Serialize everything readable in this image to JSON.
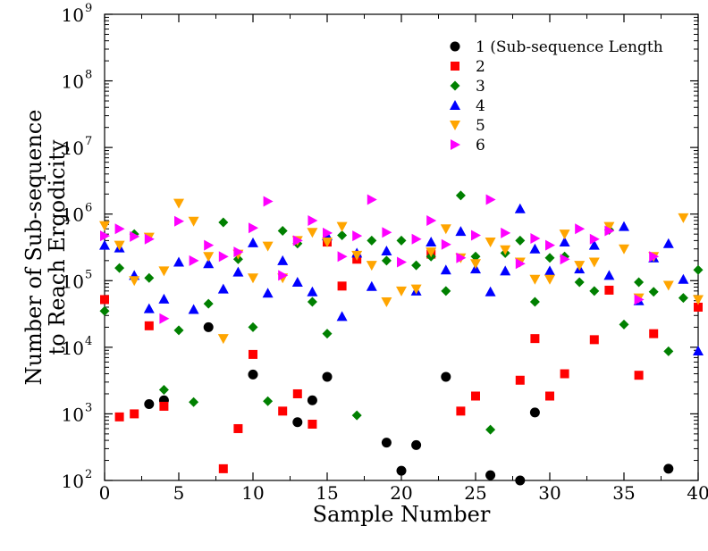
{
  "chart_data": {
    "type": "scatter",
    "xlabel": "Sample Number",
    "ylabel_lines": [
      "Number of Sub-sequence",
      "to Reach Ergodicity"
    ],
    "xlim": [
      0,
      40
    ],
    "ylim": [
      100,
      1000000000
    ],
    "yscale": "log",
    "grid": false,
    "legend_placement": "top-right",
    "x_ticks": [
      {
        "value": 0,
        "label": "0"
      },
      {
        "value": 5,
        "label": "5"
      },
      {
        "value": 10,
        "label": "10"
      },
      {
        "value": 15,
        "label": "15"
      },
      {
        "value": 20,
        "label": "20"
      },
      {
        "value": 25,
        "label": "25"
      },
      {
        "value": 30,
        "label": "30"
      },
      {
        "value": 35,
        "label": "35"
      },
      {
        "value": 40,
        "label": "40"
      }
    ],
    "y_ticks": [
      {
        "value": 100,
        "base": "10",
        "exp": "2"
      },
      {
        "value": 1000,
        "base": "10",
        "exp": "3"
      },
      {
        "value": 10000,
        "base": "10",
        "exp": "4"
      },
      {
        "value": 100000,
        "base": "10",
        "exp": "5"
      },
      {
        "value": 1000000,
        "base": "10",
        "exp": "6"
      },
      {
        "value": 10000000,
        "base": "10",
        "exp": "7"
      },
      {
        "value": 100000000,
        "base": "10",
        "exp": "8"
      },
      {
        "value": 1000000000,
        "base": "10",
        "exp": "9"
      }
    ],
    "series": [
      {
        "name": "1 (Sub-sequence Length",
        "marker": "circle",
        "color": "#000000",
        "points": [
          [
            3,
            1400
          ],
          [
            4,
            1600
          ],
          [
            7,
            20000
          ],
          [
            10,
            3900
          ],
          [
            13,
            750
          ],
          [
            14,
            1600
          ],
          [
            15,
            3600
          ],
          [
            19,
            370
          ],
          [
            20,
            140
          ],
          [
            21,
            340
          ],
          [
            23,
            3600
          ],
          [
            26,
            120
          ],
          [
            28,
            100
          ],
          [
            29,
            1050
          ],
          [
            38,
            150
          ]
        ]
      },
      {
        "name": "2",
        "marker": "square",
        "color": "#ff0000",
        "points": [
          [
            0,
            52000
          ],
          [
            1,
            900
          ],
          [
            2,
            1000
          ],
          [
            3,
            21000
          ],
          [
            4,
            1300
          ],
          [
            8,
            150
          ],
          [
            9,
            600
          ],
          [
            10,
            7800
          ],
          [
            12,
            1100
          ],
          [
            13,
            2000
          ],
          [
            14,
            700
          ],
          [
            15,
            380000
          ],
          [
            16,
            83000
          ],
          [
            17,
            210000
          ],
          [
            22,
            250000
          ],
          [
            24,
            1100
          ],
          [
            25,
            1850
          ],
          [
            28,
            3200
          ],
          [
            29,
            13500
          ],
          [
            30,
            1850
          ],
          [
            31,
            4000
          ],
          [
            33,
            13000
          ],
          [
            34,
            72000
          ],
          [
            36,
            3800
          ],
          [
            37,
            16000
          ],
          [
            40,
            40000
          ]
        ]
      },
      {
        "name": "3",
        "marker": "diamond",
        "color": "#008000",
        "points": [
          [
            0,
            35000
          ],
          [
            1,
            155000
          ],
          [
            2,
            500000
          ],
          [
            3,
            110000
          ],
          [
            4,
            2300
          ],
          [
            5,
            18000
          ],
          [
            6,
            1500
          ],
          [
            7,
            45000
          ],
          [
            8,
            750000
          ],
          [
            9,
            210000
          ],
          [
            10,
            20000
          ],
          [
            11,
            1550
          ],
          [
            12,
            560000
          ],
          [
            13,
            360000
          ],
          [
            14,
            48000
          ],
          [
            15,
            16000
          ],
          [
            16,
            480000
          ],
          [
            17,
            950
          ],
          [
            18,
            400000
          ],
          [
            19,
            200000
          ],
          [
            20,
            400000
          ],
          [
            21,
            170000
          ],
          [
            22,
            230000
          ],
          [
            23,
            70000
          ],
          [
            24,
            1900000
          ],
          [
            25,
            230000
          ],
          [
            26,
            580
          ],
          [
            27,
            260000
          ],
          [
            28,
            400000
          ],
          [
            29,
            48000
          ],
          [
            30,
            220000
          ],
          [
            31,
            230000
          ],
          [
            32,
            95000
          ],
          [
            33,
            70000
          ],
          [
            34,
            580000
          ],
          [
            35,
            22000
          ],
          [
            36,
            95000
          ],
          [
            37,
            68000
          ],
          [
            38,
            8700
          ],
          [
            39,
            55000
          ],
          [
            40,
            145000
          ]
        ]
      },
      {
        "name": "4",
        "marker": "triangle-up",
        "color": "#0000ff",
        "points": [
          [
            0,
            340000
          ],
          [
            1,
            310000
          ],
          [
            2,
            120000
          ],
          [
            3,
            38000
          ],
          [
            4,
            53000
          ],
          [
            5,
            190000
          ],
          [
            6,
            37000
          ],
          [
            7,
            180000
          ],
          [
            8,
            75000
          ],
          [
            9,
            135000
          ],
          [
            10,
            370000
          ],
          [
            11,
            65000
          ],
          [
            12,
            200000
          ],
          [
            13,
            95000
          ],
          [
            14,
            68000
          ],
          [
            15,
            470000
          ],
          [
            16,
            29000
          ],
          [
            17,
            260000
          ],
          [
            18,
            82000
          ],
          [
            19,
            280000
          ],
          [
            21,
            70000
          ],
          [
            22,
            380000
          ],
          [
            23,
            145000
          ],
          [
            24,
            550000
          ],
          [
            25,
            150000
          ],
          [
            26,
            68000
          ],
          [
            27,
            140000
          ],
          [
            28,
            1200000
          ],
          [
            29,
            300000
          ],
          [
            30,
            140000
          ],
          [
            31,
            380000
          ],
          [
            32,
            150000
          ],
          [
            33,
            340000
          ],
          [
            34,
            120000
          ],
          [
            35,
            650000
          ],
          [
            36,
            50000
          ],
          [
            37,
            220000
          ],
          [
            38,
            360000
          ],
          [
            39,
            105000
          ],
          [
            40,
            8800
          ]
        ]
      },
      {
        "name": "5",
        "marker": "triangle-down",
        "color": "#ffa500",
        "points": [
          [
            0,
            670000
          ],
          [
            1,
            340000
          ],
          [
            2,
            100000
          ],
          [
            3,
            450000
          ],
          [
            4,
            140000
          ],
          [
            5,
            1450000
          ],
          [
            6,
            780000
          ],
          [
            7,
            230000
          ],
          [
            8,
            13500
          ],
          [
            9,
            250000
          ],
          [
            10,
            110000
          ],
          [
            11,
            330000
          ],
          [
            12,
            110000
          ],
          [
            13,
            400000
          ],
          [
            14,
            530000
          ],
          [
            15,
            380000
          ],
          [
            16,
            650000
          ],
          [
            17,
            240000
          ],
          [
            18,
            170000
          ],
          [
            19,
            48000
          ],
          [
            20,
            70000
          ],
          [
            21,
            75000
          ],
          [
            22,
            270000
          ],
          [
            23,
            600000
          ],
          [
            24,
            220000
          ],
          [
            25,
            180000
          ],
          [
            26,
            380000
          ],
          [
            27,
            290000
          ],
          [
            28,
            190000
          ],
          [
            29,
            105000
          ],
          [
            30,
            105000
          ],
          [
            31,
            500000
          ],
          [
            32,
            170000
          ],
          [
            33,
            190000
          ],
          [
            34,
            650000
          ],
          [
            35,
            300000
          ],
          [
            36,
            55000
          ],
          [
            37,
            230000
          ],
          [
            38,
            85000
          ],
          [
            39,
            880000
          ],
          [
            40,
            52000
          ]
        ]
      },
      {
        "name": "6",
        "marker": "triangle-right",
        "color": "#ff00ff",
        "points": [
          [
            0,
            470000
          ],
          [
            1,
            600000
          ],
          [
            2,
            460000
          ],
          [
            3,
            420000
          ],
          [
            4,
            27000
          ],
          [
            5,
            780000
          ],
          [
            6,
            200000
          ],
          [
            7,
            340000
          ],
          [
            8,
            230000
          ],
          [
            9,
            270000
          ],
          [
            10,
            620000
          ],
          [
            11,
            1550000
          ],
          [
            12,
            120000
          ],
          [
            13,
            400000
          ],
          [
            14,
            800000
          ],
          [
            15,
            520000
          ],
          [
            16,
            230000
          ],
          [
            17,
            470000
          ],
          [
            18,
            1650000
          ],
          [
            19,
            530000
          ],
          [
            20,
            190000
          ],
          [
            21,
            420000
          ],
          [
            22,
            800000
          ],
          [
            23,
            350000
          ],
          [
            24,
            220000
          ],
          [
            25,
            480000
          ],
          [
            26,
            1650000
          ],
          [
            27,
            520000
          ],
          [
            28,
            180000
          ],
          [
            29,
            430000
          ],
          [
            30,
            340000
          ],
          [
            31,
            210000
          ],
          [
            32,
            600000
          ],
          [
            33,
            420000
          ],
          [
            34,
            560000
          ],
          [
            36,
            52000
          ],
          [
            37,
            230000
          ]
        ]
      }
    ]
  }
}
